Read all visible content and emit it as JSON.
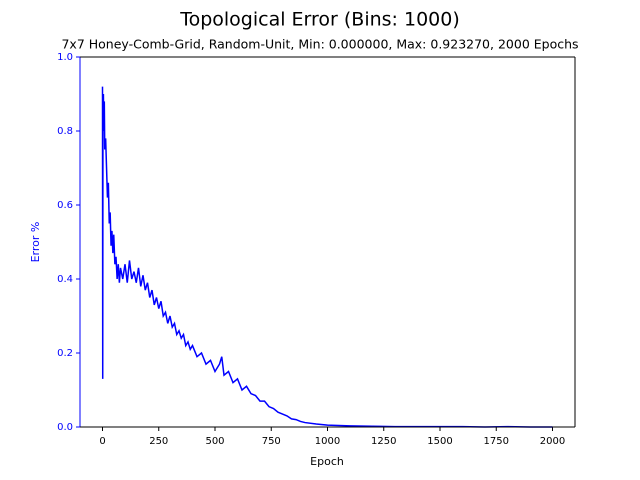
{
  "chart_data": {
    "type": "line",
    "title": "Topological Error (Bins: 1000)",
    "subtitle": "7x7 Honey-Comb-Grid, Random-Unit, Min: 0.000000, Max: 0.923270, 2000 Epochs",
    "x_label": "Epoch",
    "y_label": "Error %",
    "x": [
      0,
      1,
      2,
      4,
      6,
      8,
      10,
      14,
      18,
      22,
      26,
      30,
      34,
      38,
      42,
      46,
      50,
      55,
      60,
      65,
      70,
      75,
      80,
      90,
      100,
      110,
      120,
      130,
      140,
      150,
      160,
      170,
      180,
      190,
      200,
      210,
      220,
      230,
      240,
      250,
      260,
      270,
      280,
      290,
      300,
      310,
      320,
      330,
      340,
      350,
      360,
      370,
      380,
      390,
      400,
      420,
      440,
      460,
      480,
      500,
      520,
      530,
      540,
      560,
      580,
      600,
      620,
      640,
      660,
      680,
      700,
      720,
      740,
      760,
      780,
      800,
      820,
      840,
      860,
      880,
      900,
      950,
      1000,
      1050,
      1100,
      1200,
      1300,
      1400,
      1500,
      1600,
      1700,
      1800,
      1900,
      2000
    ],
    "series": [
      {
        "name": "Error %",
        "color": "#0000ff",
        "values": [
          0.92,
          0.13,
          0.85,
          0.9,
          0.8,
          0.88,
          0.75,
          0.78,
          0.7,
          0.62,
          0.66,
          0.55,
          0.58,
          0.49,
          0.53,
          0.47,
          0.52,
          0.44,
          0.46,
          0.4,
          0.44,
          0.39,
          0.43,
          0.4,
          0.44,
          0.39,
          0.45,
          0.4,
          0.42,
          0.39,
          0.43,
          0.38,
          0.41,
          0.37,
          0.39,
          0.35,
          0.37,
          0.33,
          0.35,
          0.32,
          0.34,
          0.3,
          0.31,
          0.28,
          0.3,
          0.27,
          0.28,
          0.25,
          0.26,
          0.24,
          0.25,
          0.22,
          0.23,
          0.21,
          0.22,
          0.19,
          0.2,
          0.17,
          0.18,
          0.15,
          0.17,
          0.19,
          0.14,
          0.15,
          0.12,
          0.13,
          0.1,
          0.11,
          0.09,
          0.085,
          0.07,
          0.07,
          0.055,
          0.05,
          0.04,
          0.035,
          0.03,
          0.022,
          0.02,
          0.015,
          0.012,
          0.008,
          0.005,
          0.004,
          0.003,
          0.002,
          0.001,
          0.001,
          0.001,
          0.001,
          0,
          0.001,
          0,
          0
        ]
      }
    ],
    "xlim": [
      -100,
      2100
    ],
    "ylim": [
      0,
      1
    ],
    "xticks": [
      0,
      250,
      500,
      750,
      1000,
      1250,
      1500,
      1750,
      2000
    ],
    "yticks": [
      {
        "value": 0,
        "label": "0.0"
      },
      {
        "value": 0.2,
        "label": "0.2"
      },
      {
        "value": 0.4,
        "label": "0.4"
      },
      {
        "value": 0.6,
        "label": "0.6"
      },
      {
        "value": 0.8,
        "label": "0.8"
      },
      {
        "value": 1,
        "label": "1.0"
      }
    ],
    "y_axis_color": "#0000ff"
  }
}
